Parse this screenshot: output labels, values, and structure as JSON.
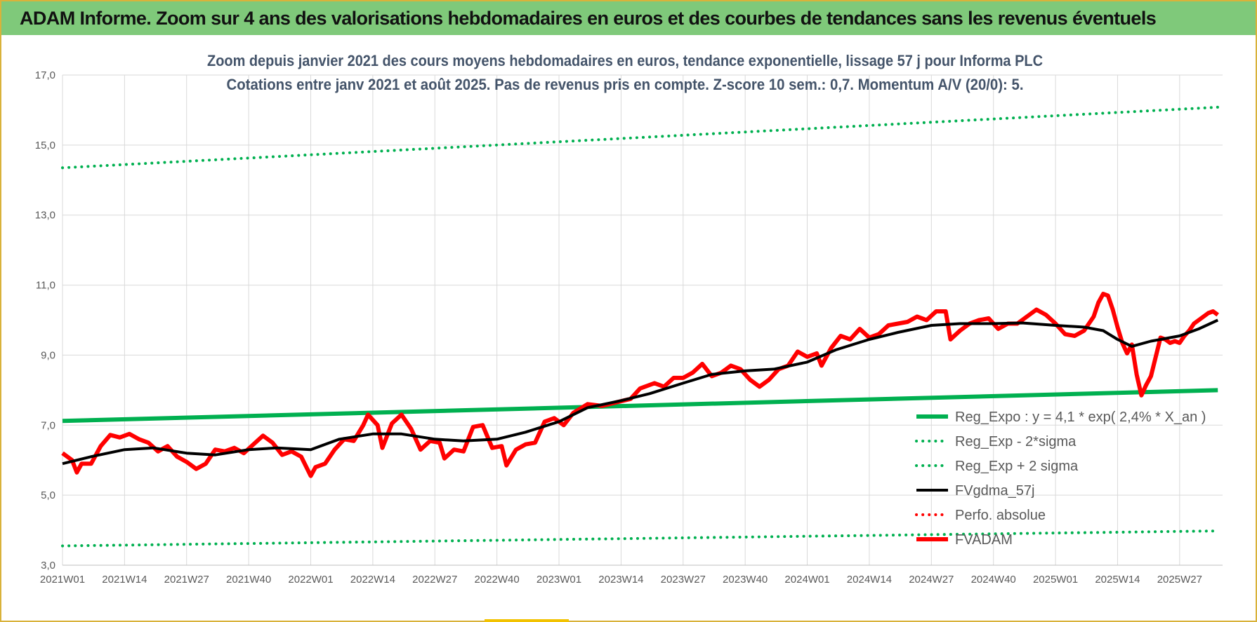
{
  "header": {
    "title": "ADAM Informe. Zoom sur 4 ans des valorisations hebdomadaires en euros et des courbes de tendances sans les revenus éventuels"
  },
  "colors": {
    "banner": "#7fc97a",
    "frame": "#d9b23a",
    "green": "#00b050",
    "black": "#000000",
    "red": "#ff0000",
    "grid": "#d9d9d9"
  },
  "chart_data": {
    "type": "line",
    "title_lines": [
      "Zoom depuis janvier 2021 des cours moyens hebdomadaires en euros, tendance exponentielle, lissage 57 j pour Informa PLC",
      "Cotations entre janv 2021 et août 2025. Pas de revenus pris en compte. Z-score 10 sem.: 0,7. Momentum A/V (20/0): 5."
    ],
    "xlabel": "",
    "ylabel": "",
    "ylim": [
      3,
      17
    ],
    "y_ticks": [
      "3,0",
      "5,0",
      "7,0",
      "9,0",
      "11,0",
      "13,0",
      "15,0",
      "17,0"
    ],
    "x_tick_labels": [
      "2021W01",
      "2021W14",
      "2021W27",
      "2021W40",
      "2022W01",
      "2022W14",
      "2022W27",
      "2022W40",
      "2023W01",
      "2023W14",
      "2023W27",
      "2023W40",
      "2024W01",
      "2024W14",
      "2024W27",
      "2024W40",
      "2025W01",
      "2025W14",
      "2025W27"
    ],
    "week_start": "2021W01",
    "week_count": 244,
    "grid": true,
    "legend_position": "bottom-right",
    "series": [
      {
        "name": "Reg_Expo : y = 4,1 * exp( 2,4% *  X_an )",
        "style": "solid-thick",
        "color": "#00b050",
        "points": [
          [
            "2021W01",
            7.12
          ],
          [
            "2025W35",
            8.0
          ]
        ]
      },
      {
        "name": "Reg_Exp - 2*sigma",
        "style": "dotted",
        "color": "#00b050",
        "points": [
          [
            "2021W01",
            3.55
          ],
          [
            "2025W35",
            3.98
          ]
        ]
      },
      {
        "name": "Reg_Exp + 2 sigma",
        "style": "dotted",
        "color": "#00b050",
        "points": [
          [
            "2021W01",
            14.35
          ],
          [
            "2025W35",
            16.08
          ]
        ]
      },
      {
        "name": "FVgdma_57j",
        "style": "solid",
        "color": "#000000",
        "points": [
          [
            "2021W01",
            5.9
          ],
          [
            "2021W07",
            6.1
          ],
          [
            "2021W14",
            6.3
          ],
          [
            "2021W20",
            6.35
          ],
          [
            "2021W27",
            6.2
          ],
          [
            "2021W33",
            6.15
          ],
          [
            "2021W40",
            6.3
          ],
          [
            "2021W46",
            6.35
          ],
          [
            "2022W01",
            6.3
          ],
          [
            "2022W07",
            6.6
          ],
          [
            "2022W14",
            6.75
          ],
          [
            "2022W20",
            6.75
          ],
          [
            "2022W27",
            6.6
          ],
          [
            "2022W33",
            6.55
          ],
          [
            "2022W40",
            6.6
          ],
          [
            "2022W46",
            6.8
          ],
          [
            "2023W01",
            7.1
          ],
          [
            "2023W07",
            7.5
          ],
          [
            "2023W14",
            7.7
          ],
          [
            "2023W20",
            7.9
          ],
          [
            "2023W27",
            8.2
          ],
          [
            "2023W33",
            8.45
          ],
          [
            "2023W40",
            8.55
          ],
          [
            "2023W46",
            8.6
          ],
          [
            "2024W01",
            8.8
          ],
          [
            "2024W07",
            9.15
          ],
          [
            "2024W14",
            9.45
          ],
          [
            "2024W20",
            9.65
          ],
          [
            "2024W27",
            9.85
          ],
          [
            "2024W33",
            9.9
          ],
          [
            "2024W40",
            9.9
          ],
          [
            "2024W46",
            9.92
          ],
          [
            "2025W01",
            9.85
          ],
          [
            "2025W07",
            9.8
          ],
          [
            "2025W11",
            9.7
          ],
          [
            "2025W14",
            9.45
          ],
          [
            "2025W17",
            9.25
          ],
          [
            "2025W21",
            9.4
          ],
          [
            "2025W27",
            9.55
          ],
          [
            "2025W31",
            9.75
          ],
          [
            "2025W35",
            10.0
          ]
        ]
      },
      {
        "name": "Perfo. absolue",
        "style": "dotted",
        "color": "#ff0000",
        "points": []
      },
      {
        "name": "FVADAM",
        "style": "solid-thick",
        "color": "#ff0000",
        "points": [
          [
            "2021W01",
            6.2
          ],
          [
            "2021W03",
            6.0
          ],
          [
            "2021W04",
            5.65
          ],
          [
            "2021W05",
            5.9
          ],
          [
            "2021W07",
            5.9
          ],
          [
            "2021W09",
            6.4
          ],
          [
            "2021W11",
            6.72
          ],
          [
            "2021W13",
            6.65
          ],
          [
            "2021W15",
            6.75
          ],
          [
            "2021W17",
            6.6
          ],
          [
            "2021W19",
            6.5
          ],
          [
            "2021W21",
            6.25
          ],
          [
            "2021W23",
            6.4
          ],
          [
            "2021W25",
            6.1
          ],
          [
            "2021W27",
            5.95
          ],
          [
            "2021W29",
            5.75
          ],
          [
            "2021W31",
            5.9
          ],
          [
            "2021W33",
            6.3
          ],
          [
            "2021W35",
            6.25
          ],
          [
            "2021W37",
            6.35
          ],
          [
            "2021W39",
            6.2
          ],
          [
            "2021W41",
            6.45
          ],
          [
            "2021W43",
            6.7
          ],
          [
            "2021W45",
            6.5
          ],
          [
            "2021W47",
            6.15
          ],
          [
            "2021W49",
            6.25
          ],
          [
            "2021W51",
            6.1
          ],
          [
            "2022W01",
            5.55
          ],
          [
            "2022W02",
            5.8
          ],
          [
            "2022W04",
            5.9
          ],
          [
            "2022W06",
            6.3
          ],
          [
            "2022W08",
            6.6
          ],
          [
            "2022W10",
            6.55
          ],
          [
            "2022W12",
            7.0
          ],
          [
            "2022W13",
            7.3
          ],
          [
            "2022W15",
            7.0
          ],
          [
            "2022W16",
            6.35
          ],
          [
            "2022W18",
            7.05
          ],
          [
            "2022W20",
            7.3
          ],
          [
            "2022W22",
            6.9
          ],
          [
            "2022W24",
            6.3
          ],
          [
            "2022W26",
            6.55
          ],
          [
            "2022W28",
            6.5
          ],
          [
            "2022W29",
            6.05
          ],
          [
            "2022W31",
            6.3
          ],
          [
            "2022W33",
            6.25
          ],
          [
            "2022W35",
            6.95
          ],
          [
            "2022W37",
            7.0
          ],
          [
            "2022W39",
            6.35
          ],
          [
            "2022W41",
            6.4
          ],
          [
            "2022W42",
            5.85
          ],
          [
            "2022W44",
            6.3
          ],
          [
            "2022W46",
            6.45
          ],
          [
            "2022W48",
            6.5
          ],
          [
            "2022W50",
            7.1
          ],
          [
            "2022W52",
            7.2
          ],
          [
            "2023W02",
            7.0
          ],
          [
            "2023W04",
            7.35
          ],
          [
            "2023W07",
            7.6
          ],
          [
            "2023W10",
            7.55
          ],
          [
            "2023W13",
            7.65
          ],
          [
            "2023W16",
            7.75
          ],
          [
            "2023W18",
            8.05
          ],
          [
            "2023W21",
            8.2
          ],
          [
            "2023W23",
            8.1
          ],
          [
            "2023W25",
            8.35
          ],
          [
            "2023W27",
            8.35
          ],
          [
            "2023W29",
            8.5
          ],
          [
            "2023W31",
            8.75
          ],
          [
            "2023W33",
            8.4
          ],
          [
            "2023W35",
            8.5
          ],
          [
            "2023W37",
            8.7
          ],
          [
            "2023W39",
            8.6
          ],
          [
            "2023W41",
            8.3
          ],
          [
            "2023W43",
            8.1
          ],
          [
            "2023W45",
            8.3
          ],
          [
            "2023W47",
            8.6
          ],
          [
            "2023W49",
            8.7
          ],
          [
            "2023W51",
            9.1
          ],
          [
            "2024W01",
            8.95
          ],
          [
            "2024W03",
            9.05
          ],
          [
            "2024W04",
            8.7
          ],
          [
            "2024W06",
            9.2
          ],
          [
            "2024W08",
            9.55
          ],
          [
            "2024W10",
            9.45
          ],
          [
            "2024W12",
            9.75
          ],
          [
            "2024W14",
            9.5
          ],
          [
            "2024W16",
            9.6
          ],
          [
            "2024W18",
            9.85
          ],
          [
            "2024W20",
            9.9
          ],
          [
            "2024W22",
            9.95
          ],
          [
            "2024W24",
            10.1
          ],
          [
            "2024W26",
            10.0
          ],
          [
            "2024W28",
            10.25
          ],
          [
            "2024W30",
            10.25
          ],
          [
            "2024W31",
            9.45
          ],
          [
            "2024W33",
            9.7
          ],
          [
            "2024W35",
            9.9
          ],
          [
            "2024W37",
            10.0
          ],
          [
            "2024W39",
            10.05
          ],
          [
            "2024W41",
            9.75
          ],
          [
            "2024W43",
            9.9
          ],
          [
            "2024W45",
            9.9
          ],
          [
            "2024W47",
            10.1
          ],
          [
            "2024W49",
            10.3
          ],
          [
            "2024W51",
            10.15
          ],
          [
            "2025W01",
            9.9
          ],
          [
            "2025W03",
            9.6
          ],
          [
            "2025W05",
            9.55
          ],
          [
            "2025W07",
            9.7
          ],
          [
            "2025W09",
            10.1
          ],
          [
            "2025W10",
            10.5
          ],
          [
            "2025W11",
            10.75
          ],
          [
            "2025W12",
            10.7
          ],
          [
            "2025W13",
            10.3
          ],
          [
            "2025W14",
            9.8
          ],
          [
            "2025W15",
            9.35
          ],
          [
            "2025W16",
            9.05
          ],
          [
            "2025W17",
            9.3
          ],
          [
            "2025W18",
            8.45
          ],
          [
            "2025W19",
            7.85
          ],
          [
            "2025W20",
            8.15
          ],
          [
            "2025W21",
            8.4
          ],
          [
            "2025W22",
            8.95
          ],
          [
            "2025W23",
            9.5
          ],
          [
            "2025W24",
            9.45
          ],
          [
            "2025W25",
            9.35
          ],
          [
            "2025W26",
            9.4
          ],
          [
            "2025W27",
            9.35
          ],
          [
            "2025W28",
            9.55
          ],
          [
            "2025W29",
            9.7
          ],
          [
            "2025W30",
            9.9
          ],
          [
            "2025W31",
            10.0
          ],
          [
            "2025W32",
            10.1
          ],
          [
            "2025W33",
            10.2
          ],
          [
            "2025W34",
            10.25
          ],
          [
            "2025W35",
            10.15
          ]
        ]
      }
    ]
  }
}
